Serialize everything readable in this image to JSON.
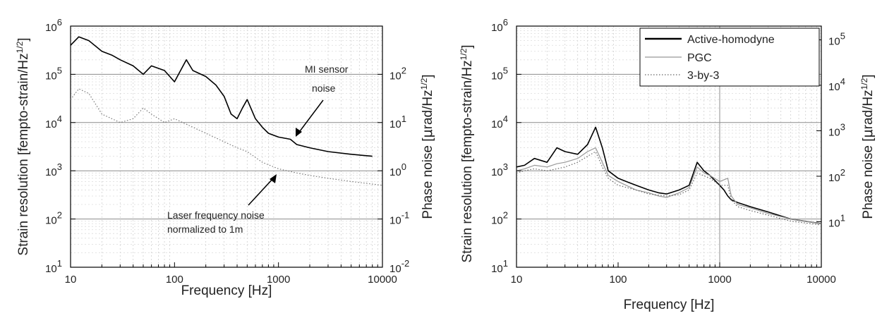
{
  "chart_data": [
    {
      "type": "line",
      "x_scale": "log",
      "y_scale": "log",
      "xlabel": "Frequency [Hz]",
      "ylabel_base": "Strain resolution [fempto-strain/Hz",
      "ylabel_sup": "1/2",
      "ylabel_tail": "]",
      "y2label_base": "Phase noise [",
      "y2label_mu": "μ",
      "y2label_mid": "rad/Hz",
      "y2label_sup": "1/2",
      "y2label_tail": "]",
      "xlim": [
        10,
        10000
      ],
      "ylim": [
        10,
        1000000
      ],
      "y2lim": [
        0.01,
        1000
      ],
      "x_ticks": [
        "10",
        "100",
        "1000",
        "10000"
      ],
      "y_ticks": [
        {
          "base": "10",
          "exp": "1"
        },
        {
          "base": "10",
          "exp": "2"
        },
        {
          "base": "10",
          "exp": "3"
        },
        {
          "base": "10",
          "exp": "4"
        },
        {
          "base": "10",
          "exp": "5"
        },
        {
          "base": "10",
          "exp": "6"
        }
      ],
      "y2_ticks": [
        {
          "base": "10",
          "exp": "-2"
        },
        {
          "base": "10",
          "exp": "-1"
        },
        {
          "base": "10",
          "exp": "0"
        },
        {
          "base": "10",
          "exp": "1"
        },
        {
          "base": "10",
          "exp": "2"
        }
      ],
      "grid": true,
      "annotations": [
        {
          "lines": [
            "MI sensor",
            "noise"
          ]
        },
        {
          "lines": [
            "Laser frequency noise",
            "normalized to 1m"
          ]
        }
      ],
      "series": [
        {
          "style": "solid",
          "color": "#000000",
          "x": [
            10,
            12,
            15,
            20,
            25,
            30,
            40,
            50,
            60,
            80,
            100,
            130,
            150,
            200,
            250,
            300,
            350,
            400,
            450,
            500,
            600,
            700,
            800,
            1000,
            1300,
            1500,
            2000,
            3000,
            5000,
            8000
          ],
          "y": [
            400000,
            600000,
            500000,
            300000,
            250000,
            200000,
            150000,
            100000,
            150000,
            120000,
            70000,
            200000,
            120000,
            90000,
            60000,
            35000,
            15000,
            12000,
            20000,
            30000,
            12000,
            8000,
            6000,
            5000,
            4500,
            3500,
            3000,
            2500,
            2200,
            2000
          ]
        },
        {
          "style": "dotted",
          "color": "#777777",
          "x": [
            10,
            12,
            15,
            20,
            25,
            30,
            40,
            50,
            60,
            80,
            100,
            150,
            200,
            300,
            400,
            500,
            700,
            1000,
            1500,
            2000,
            3000,
            5000,
            7000,
            10000
          ],
          "y": [
            30000,
            50000,
            40000,
            15000,
            12000,
            10000,
            12000,
            20000,
            15000,
            10000,
            12000,
            8000,
            6000,
            4000,
            3000,
            2500,
            1500,
            1100,
            900,
            800,
            700,
            600,
            550,
            500
          ]
        }
      ]
    },
    {
      "type": "line",
      "x_scale": "log",
      "y_scale": "log",
      "xlabel": "Frequency [Hz]",
      "ylabel_base": "Strain resolution [fempto-strain/Hz",
      "ylabel_sup": "1/2",
      "ylabel_tail": "]",
      "y2label_base": "Phase noise [",
      "y2label_mu": "μ",
      "y2label_mid": "rad/Hz",
      "y2label_sup": "1/2",
      "y2label_tail": "]",
      "xlim": [
        10,
        10000
      ],
      "ylim": [
        10,
        1000000
      ],
      "y2lim": [
        1,
        200000
      ],
      "x_ticks": [
        "10",
        "100",
        "1000",
        "10000"
      ],
      "y_ticks": [
        {
          "base": "10",
          "exp": "1"
        },
        {
          "base": "10",
          "exp": "2"
        },
        {
          "base": "10",
          "exp": "3"
        },
        {
          "base": "10",
          "exp": "4"
        },
        {
          "base": "10",
          "exp": "5"
        },
        {
          "base": "10",
          "exp": "6"
        }
      ],
      "y2_ticks": [
        {
          "base": "10",
          "exp": "1"
        },
        {
          "base": "10",
          "exp": "2"
        },
        {
          "base": "10",
          "exp": "3"
        },
        {
          "base": "10",
          "exp": "4"
        },
        {
          "base": "10",
          "exp": "5"
        }
      ],
      "grid": true,
      "legend_position": "top-right",
      "series": [
        {
          "name": "Active-homodyne",
          "style": "solid",
          "color": "#000000",
          "x": [
            10,
            12,
            15,
            20,
            25,
            30,
            40,
            50,
            60,
            70,
            80,
            100,
            120,
            150,
            200,
            250,
            300,
            400,
            500,
            600,
            700,
            800,
            1000,
            1100,
            1200,
            1300,
            1500,
            2000,
            3000,
            5000,
            10000
          ],
          "y": [
            1200,
            1300,
            1800,
            1500,
            3000,
            2500,
            2200,
            3500,
            8000,
            3000,
            1000,
            700,
            600,
            500,
            400,
            350,
            330,
            400,
            500,
            1500,
            1000,
            800,
            500,
            400,
            300,
            250,
            220,
            180,
            140,
            100,
            80
          ]
        },
        {
          "name": "PGC",
          "style": "solid",
          "color": "#999999",
          "x": [
            10,
            12,
            15,
            20,
            25,
            30,
            40,
            50,
            60,
            70,
            80,
            100,
            120,
            150,
            200,
            250,
            300,
            400,
            500,
            600,
            700,
            800,
            1000,
            1200,
            1300,
            1500,
            2000,
            3000,
            5000,
            10000
          ],
          "y": [
            1000,
            1100,
            1300,
            1200,
            1400,
            1500,
            1800,
            2500,
            3000,
            1500,
            800,
            600,
            500,
            400,
            350,
            300,
            280,
            350,
            450,
            1200,
            900,
            800,
            600,
            700,
            300,
            200,
            170,
            130,
            100,
            80
          ]
        },
        {
          "name": "3-by-3",
          "style": "dotted",
          "color": "#666666",
          "x": [
            10,
            12,
            15,
            20,
            25,
            30,
            40,
            50,
            60,
            70,
            80,
            100,
            150,
            200,
            300,
            400,
            500,
            600,
            800,
            1000,
            1200,
            1300,
            1500,
            2000,
            3000,
            5000,
            10000
          ],
          "y": [
            900,
            1000,
            1100,
            1000,
            1100,
            1200,
            1500,
            2000,
            2500,
            1200,
            700,
            500,
            400,
            330,
            300,
            320,
            400,
            900,
            700,
            500,
            500,
            250,
            180,
            150,
            120,
            90,
            75
          ]
        }
      ]
    }
  ]
}
